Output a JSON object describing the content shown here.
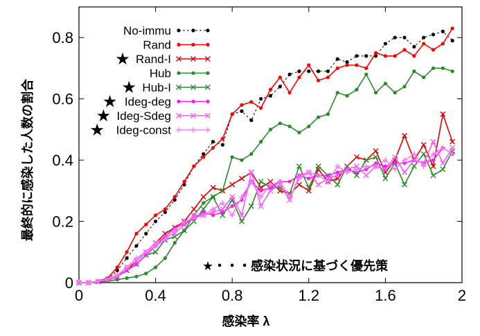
{
  "chart_data": {
    "type": "line",
    "xlabel": "感染率 λ",
    "ylabel": "最終的に感染した人数の割合",
    "xlim": [
      0,
      2
    ],
    "ylim": [
      0,
      0.9
    ],
    "xticks": [
      0,
      0.4,
      0.8,
      1.2,
      1.6,
      2
    ],
    "xtick_labels": [
      "0",
      "0.4",
      "0.8",
      "1.2",
      "1.6",
      "2"
    ],
    "yticks": [
      0,
      0.2,
      0.4,
      0.6,
      0.8
    ],
    "ytick_labels": [
      "0",
      "0.2",
      "0.4",
      "0.6",
      "0.8"
    ],
    "grid": false,
    "legend_position": "top-left",
    "annotation": "★・・・感染状況に基づく優先策",
    "star_glyph": "★",
    "x": [
      0,
      0.05,
      0.1,
      0.15,
      0.2,
      0.25,
      0.3,
      0.35,
      0.4,
      0.45,
      0.5,
      0.55,
      0.6,
      0.65,
      0.7,
      0.75,
      0.8,
      0.85,
      0.9,
      0.95,
      1.0,
      1.05,
      1.1,
      1.15,
      1.2,
      1.25,
      1.3,
      1.35,
      1.4,
      1.45,
      1.5,
      1.55,
      1.6,
      1.65,
      1.7,
      1.75,
      1.8,
      1.85,
      1.9,
      1.95
    ],
    "series": [
      {
        "name": "No-immu",
        "starred": false,
        "color": "#000000",
        "marker": "dot",
        "dashed": true,
        "values": [
          0,
          0,
          0.005,
          0.01,
          0.04,
          0.08,
          0.12,
          0.16,
          0.2,
          0.23,
          0.27,
          0.32,
          0.38,
          0.42,
          0.46,
          0.45,
          0.55,
          0.56,
          0.53,
          0.6,
          0.61,
          0.64,
          0.68,
          0.69,
          0.69,
          0.69,
          0.69,
          0.73,
          0.72,
          0.74,
          0.74,
          0.74,
          0.78,
          0.8,
          0.8,
          0.77,
          0.8,
          0.81,
          0.82,
          0.79
        ]
      },
      {
        "name": "Rand",
        "starred": false,
        "color": "#ff0000",
        "marker": "dot",
        "dashed": false,
        "values": [
          0,
          0,
          0.005,
          0.015,
          0.05,
          0.1,
          0.16,
          0.19,
          0.22,
          0.24,
          0.28,
          0.33,
          0.38,
          0.41,
          0.44,
          0.47,
          0.55,
          0.58,
          0.59,
          0.57,
          0.63,
          0.67,
          0.62,
          0.67,
          0.71,
          0.66,
          0.67,
          0.7,
          0.71,
          0.71,
          0.7,
          0.75,
          0.74,
          0.74,
          0.76,
          0.74,
          0.78,
          0.76,
          0.78,
          0.83
        ]
      },
      {
        "name": "Rand-I",
        "starred": true,
        "color": "#e00000",
        "marker": "cross",
        "dashed": false,
        "values": [
          0,
          0,
          0.003,
          0.008,
          0.02,
          0.04,
          0.07,
          0.1,
          0.13,
          0.16,
          0.18,
          0.2,
          0.24,
          0.28,
          0.31,
          0.3,
          0.32,
          0.34,
          0.36,
          0.31,
          0.33,
          0.3,
          0.29,
          0.32,
          0.3,
          0.37,
          0.33,
          0.34,
          0.38,
          0.41,
          0.4,
          0.43,
          0.36,
          0.4,
          0.48,
          0.4,
          0.45,
          0.38,
          0.55,
          0.46
        ]
      },
      {
        "name": "Hub",
        "starred": false,
        "color": "#2a8a2a",
        "marker": "dot",
        "dashed": false,
        "values": [
          0,
          0,
          0.002,
          0.005,
          0.01,
          0.015,
          0.02,
          0.03,
          0.05,
          0.08,
          0.13,
          0.17,
          0.22,
          0.26,
          0.28,
          0.3,
          0.41,
          0.4,
          0.42,
          0.46,
          0.5,
          0.52,
          0.51,
          0.49,
          0.51,
          0.54,
          0.55,
          0.62,
          0.61,
          0.63,
          0.68,
          0.62,
          0.65,
          0.62,
          0.64,
          0.69,
          0.67,
          0.7,
          0.7,
          0.69
        ]
      },
      {
        "name": "Hub-I",
        "starred": true,
        "color": "#2a8a2a",
        "marker": "cross",
        "dashed": false,
        "values": [
          0,
          0,
          0.003,
          0.01,
          0.02,
          0.04,
          0.06,
          0.09,
          0.1,
          0.14,
          0.15,
          0.17,
          0.2,
          0.24,
          0.28,
          0.22,
          0.27,
          0.2,
          0.25,
          0.33,
          0.31,
          0.31,
          0.29,
          0.38,
          0.31,
          0.38,
          0.35,
          0.32,
          0.38,
          0.35,
          0.4,
          0.41,
          0.34,
          0.39,
          0.32,
          0.38,
          0.42,
          0.35,
          0.37,
          0.43
        ]
      },
      {
        "name": "Ideg-deg",
        "starred": true,
        "color": "#ee22ee",
        "marker": "dot",
        "dashed": false,
        "values": [
          0,
          0,
          0.003,
          0.01,
          0.02,
          0.04,
          0.06,
          0.09,
          0.12,
          0.15,
          0.18,
          0.19,
          0.21,
          0.23,
          0.22,
          0.23,
          0.25,
          0.27,
          0.33,
          0.3,
          0.31,
          0.33,
          0.33,
          0.35,
          0.34,
          0.35,
          0.35,
          0.36,
          0.37,
          0.36,
          0.37,
          0.39,
          0.38,
          0.39,
          0.39,
          0.4,
          0.39,
          0.4,
          0.44,
          0.42
        ]
      },
      {
        "name": "Ideg-Sdeg",
        "starred": true,
        "color": "#ff55ff",
        "marker": "cross",
        "dashed": false,
        "values": [
          0,
          0,
          0.003,
          0.01,
          0.02,
          0.05,
          0.07,
          0.1,
          0.13,
          0.15,
          0.16,
          0.19,
          0.22,
          0.22,
          0.23,
          0.24,
          0.28,
          0.22,
          0.36,
          0.25,
          0.3,
          0.32,
          0.27,
          0.35,
          0.36,
          0.32,
          0.34,
          0.35,
          0.37,
          0.38,
          0.35,
          0.38,
          0.37,
          0.41,
          0.36,
          0.4,
          0.39,
          0.46,
          0.39,
          0.44
        ]
      },
      {
        "name": "Ideg-const",
        "starred": true,
        "color": "#ff77ff",
        "marker": "plus",
        "dashed": false,
        "values": [
          0,
          0,
          0.004,
          0.012,
          0.025,
          0.05,
          0.08,
          0.1,
          0.12,
          0.14,
          0.17,
          0.2,
          0.21,
          0.22,
          0.24,
          0.26,
          0.22,
          0.28,
          0.33,
          0.28,
          0.32,
          0.33,
          0.28,
          0.34,
          0.36,
          0.35,
          0.33,
          0.38,
          0.36,
          0.37,
          0.38,
          0.38,
          0.4,
          0.37,
          0.4,
          0.42,
          0.38,
          0.42,
          0.44,
          0.42
        ]
      }
    ]
  }
}
